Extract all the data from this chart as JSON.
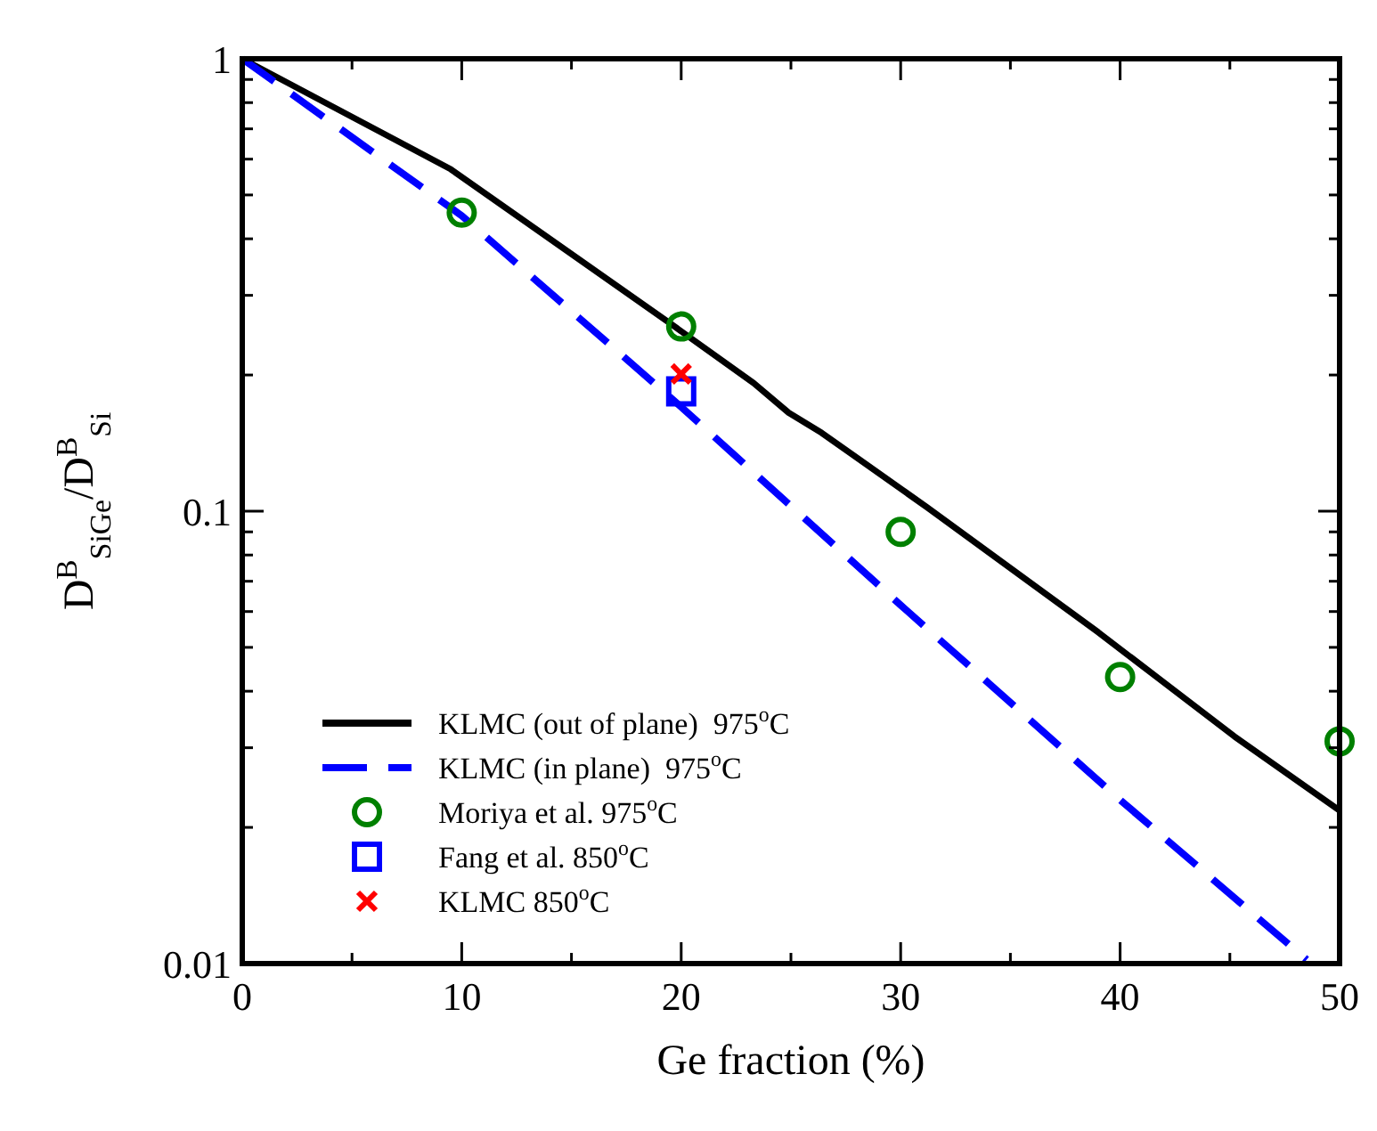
{
  "chart_data": {
    "type": "line",
    "xlabel": "Ge fraction (%)",
    "ylabel": "D$^{B}$$_{SiGe}$/D$^{B}$$_{Si}$",
    "log": "y",
    "xlim": [
      0,
      50
    ],
    "ylim": [
      0.01,
      1
    ],
    "xticks": [
      0,
      {
        "value": 5,
        "label": null
      },
      10,
      {
        "value": 15,
        "label": null
      },
      20,
      {
        "value": 25,
        "label": null
      },
      30,
      {
        "value": 35,
        "label": null
      },
      40,
      {
        "value": 45,
        "label": null
      },
      50
    ],
    "yticks": [
      0.01,
      {
        "value": 0.02,
        "label": null
      },
      {
        "value": 0.03,
        "label": null
      },
      {
        "value": 0.04,
        "label": null
      },
      {
        "value": 0.05,
        "label": null
      },
      {
        "value": 0.06,
        "label": null
      },
      {
        "value": 0.07,
        "label": null
      },
      {
        "value": 0.08,
        "label": null
      },
      {
        "value": 0.09,
        "label": null
      },
      0.1,
      {
        "value": 0.2,
        "label": null
      },
      {
        "value": 0.3,
        "label": null
      },
      {
        "value": 0.4,
        "label": null
      },
      {
        "value": 0.5,
        "label": null
      },
      {
        "value": 0.6,
        "label": null
      },
      {
        "value": 0.7,
        "label": null
      },
      {
        "value": 0.8,
        "label": null
      },
      {
        "value": 0.9,
        "label": null
      },
      1
    ],
    "grid": false,
    "legend": "bottom left",
    "series": [
      {
        "name": "KLMC (out of plane)  975$^{o}$C",
        "color": "#000000",
        "line_style": "solid",
        "marker": "none",
        "x": [
          0,
          9.5,
          19.5,
          23.3,
          24.9,
          26.4,
          31.2,
          39,
          45.2,
          50
        ],
        "values": [
          1,
          0.57,
          0.26,
          0.192,
          0.165,
          0.149,
          0.102,
          0.054,
          0.0318,
          0.0218
        ]
      },
      {
        "name": "KLMC (in plane)  975$^{o}$C",
        "color": "#0000ff",
        "line_style": "dashed",
        "marker": "none",
        "x": [
          0,
          10,
          20,
          30,
          40,
          48.5
        ],
        "values": [
          1,
          0.45,
          0.17,
          0.062,
          0.023,
          0.0102
        ]
      },
      {
        "name": "Moriya et al. 975$^{o}$C",
        "type": "scatter",
        "color": "#008000",
        "marker": "circle",
        "x": [
          10,
          20,
          30,
          40,
          50
        ],
        "values": [
          0.457,
          0.256,
          0.09,
          0.043,
          0.031
        ]
      },
      {
        "name": "Fang et al. 850$^{o}$C",
        "type": "scatter",
        "color": "#0000ff",
        "marker": "square",
        "x": [
          20
        ],
        "values": [
          0.184
        ]
      },
      {
        "name": "KLMC 850$^{o}$C",
        "type": "scatter",
        "color": "#ff0000",
        "marker": "cross",
        "x": [
          20
        ],
        "values": [
          0.201
        ]
      }
    ]
  }
}
